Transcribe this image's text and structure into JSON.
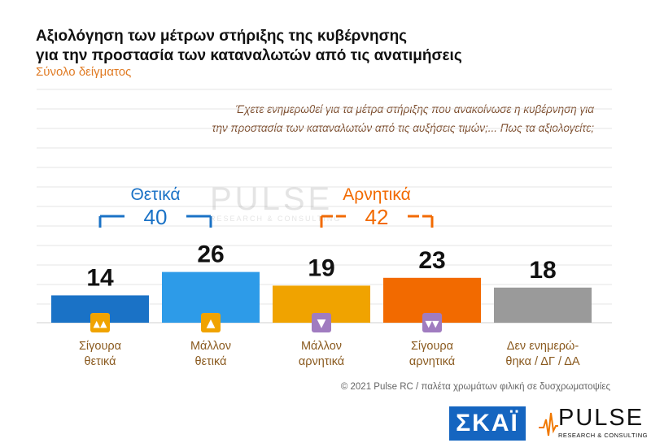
{
  "header": {
    "title_line1": "Αξιολόγηση των μέτρων στήριξης της κυβέρνησης",
    "title_line2": "για την προστασία των καταναλωτών από τις ανατιμήσεις",
    "subtitle": "Σύνολο δείγματος"
  },
  "question": {
    "line1": "Έχετε ενημερωθεί για τα μέτρα στήριξης που ανακοίνωσε η κυβέρνηση για",
    "line2": "την προστασία των καταναλωτών από τις αυξήσεις τιμών;... Πως τα αξιολογείτε;"
  },
  "chart_data": {
    "type": "bar",
    "title": "Αξιολόγηση των μέτρων στήριξης της κυβέρνησης για την προστασία των καταναλωτών από τις ανατιμήσεις",
    "categories": [
      [
        "Σίγουρα",
        "θετικά"
      ],
      [
        "Μάλλον",
        "θετικά"
      ],
      [
        "Μάλλον",
        "αρνητικά"
      ],
      [
        "Σίγουρα",
        "αρνητικά"
      ],
      [
        "Δεν ενημερώ-",
        "θηκα / ΔΓ / ΔΑ"
      ]
    ],
    "values": [
      14,
      26,
      19,
      23,
      18
    ],
    "colors": [
      "#1a72c6",
      "#2d9be8",
      "#f0a300",
      "#f26a00",
      "#9a9a9a"
    ],
    "icons": [
      "double-thumbs-up-icon",
      "thumbs-up-icon",
      "thumbs-down-icon",
      "double-thumbs-down-icon",
      ""
    ],
    "icon_colors": [
      "#f0a300",
      "#f0a300",
      "#a07cc0",
      "#a07cc0",
      ""
    ],
    "ylim": [
      0,
      40
    ],
    "grid": true,
    "groups": [
      {
        "label": "Θετικά",
        "total": "40",
        "color": "#1a72c6",
        "from": 0,
        "to": 1
      },
      {
        "label": "Αρνητικά",
        "total": "42",
        "color": "#f26a00",
        "from": 2,
        "to": 3
      }
    ]
  },
  "footer": {
    "text": "© 2021 Pulse RC   /   παλέτα χρωμάτων φιλική σε δυσχρωματοψίες"
  },
  "logos": {
    "skai": "ΣΚΑΪ",
    "pulse_name": "PULSE",
    "pulse_tag": "RESEARCH & CONSULTING"
  }
}
